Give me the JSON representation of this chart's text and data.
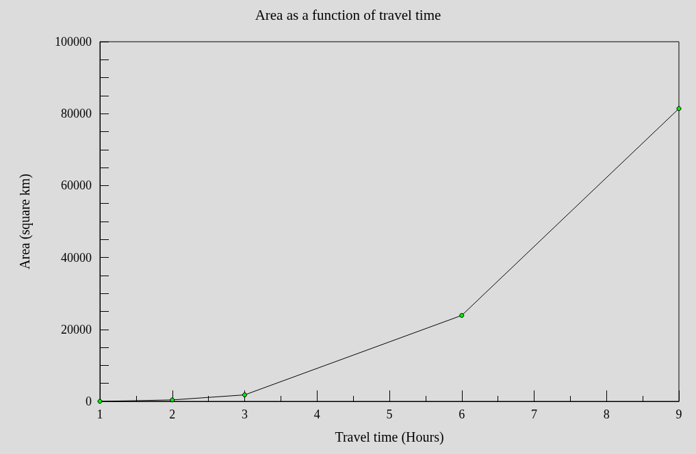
{
  "chart_data": {
    "type": "line",
    "title": "Area as a function of travel time",
    "xlabel": "Travel time (Hours)",
    "ylabel": "Area (square km)",
    "x": [
      1,
      2,
      3,
      6,
      9
    ],
    "series": [
      {
        "color": "#00ee00",
        "values": [
          0,
          400,
          1800,
          23900,
          81400
        ]
      }
    ],
    "xlim": [
      1,
      9
    ],
    "xticks": [
      1,
      2,
      3,
      4,
      5,
      6,
      7,
      8,
      9
    ],
    "ylim": [
      0,
      100000
    ],
    "yticks": [
      0,
      20000,
      40000,
      60000,
      80000,
      100000
    ],
    "grid": false,
    "marker": "circle",
    "line_style": "solid"
  }
}
